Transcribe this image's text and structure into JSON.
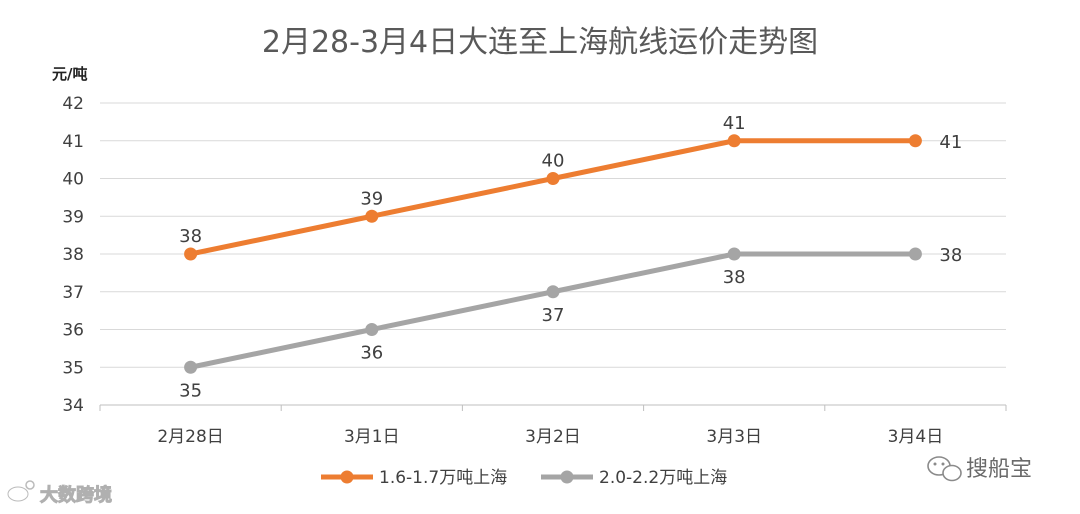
{
  "chart_data": {
    "type": "line",
    "title": "2月28-3月4日大连至上海航线运价走势图",
    "ylabel": "元/吨",
    "xlabel": "",
    "categories": [
      "2月28日",
      "3月1日",
      "3月2日",
      "3月3日",
      "3月4日"
    ],
    "yticks": [
      34,
      35,
      36,
      37,
      38,
      39,
      40,
      41,
      42
    ],
    "ylim": [
      34,
      42
    ],
    "grid": true,
    "legend_position": "bottom",
    "series": [
      {
        "name": "1.6-1.7万吨上海",
        "values": [
          38,
          39,
          40,
          41,
          41
        ],
        "color": "#ED7D31",
        "labels": [
          "38",
          "39",
          "40",
          "41",
          "41"
        ]
      },
      {
        "name": "2.0-2.2万吨上海",
        "values": [
          35,
          36,
          37,
          38,
          38
        ],
        "color": "#A5A5A5",
        "labels": [
          "35",
          "36",
          "37",
          "38",
          "38"
        ]
      }
    ]
  },
  "watermarks": {
    "left": "大数跨境",
    "right": "搜船宝"
  },
  "icons": {
    "left_logo": "weibo-icon",
    "right_logo": "wechat-icon"
  }
}
